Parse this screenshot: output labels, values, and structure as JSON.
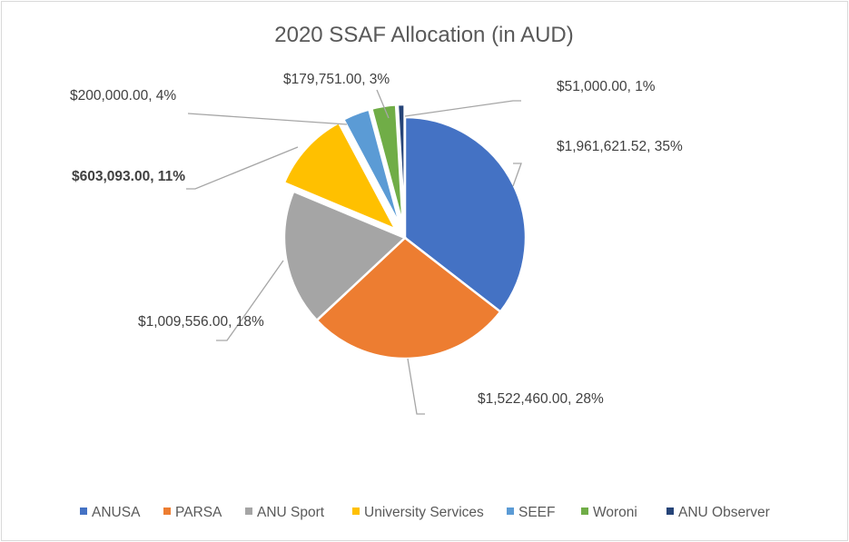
{
  "chart_data": {
    "type": "pie",
    "title": "2020 SSAF Allocation (in AUD)",
    "legend_position": "bottom",
    "start_angle_deg": 0,
    "direction": "clockwise",
    "series": [
      {
        "name": "ANUSA",
        "value": 1961621.52,
        "label": "$1,961,621.52, 35%",
        "color": "#4472C4",
        "exploded": false,
        "label_bold": false
      },
      {
        "name": "PARSA",
        "value": 1522460.0,
        "label": "$1,522,460.00, 28%",
        "color": "#ED7D31",
        "exploded": false,
        "label_bold": false
      },
      {
        "name": "ANU Sport",
        "value": 1009556.0,
        "label": "$1,009,556.00, 18%",
        "color": "#A5A5A5",
        "exploded": false,
        "label_bold": false
      },
      {
        "name": "University Services",
        "value": 603093.0,
        "label": "$603,093.00, 11%",
        "color": "#FFC000",
        "exploded": true,
        "label_bold": true
      },
      {
        "name": "SEEF",
        "value": 200000.0,
        "label": "$200,000.00, 4%",
        "color": "#5B9BD5",
        "exploded": true,
        "label_bold": false
      },
      {
        "name": "Woroni",
        "value": 179751.0,
        "label": "$179,751.00, 3%",
        "color": "#70AD47",
        "exploded": true,
        "label_bold": false
      },
      {
        "name": "ANU Observer",
        "value": 51000.0,
        "label": "$51,000.00, 1%",
        "color": "#264478",
        "exploded": true,
        "label_bold": false
      }
    ]
  }
}
